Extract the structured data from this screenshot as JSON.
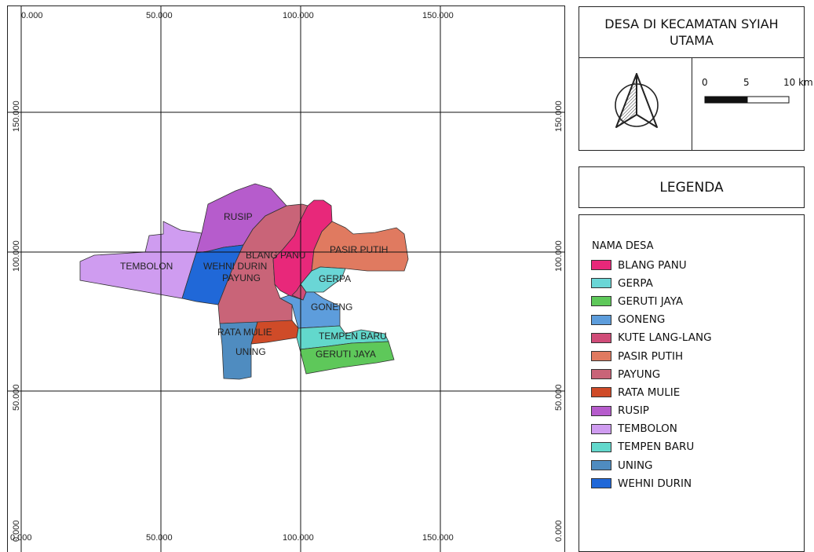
{
  "title": "DESA DI KECAMATAN SYIAH UTAMA",
  "legend": {
    "title": "LEGENDA",
    "heading": "NAMA DESA",
    "items": [
      {
        "label": "BLANG PANU",
        "color": "#e8287a"
      },
      {
        "label": "GERPA",
        "color": "#6ad6d6"
      },
      {
        "label": "GERUTI JAYA",
        "color": "#5ec85a"
      },
      {
        "label": "GONENG",
        "color": "#5d9ddc"
      },
      {
        "label": "KUTE LANG-LANG",
        "color": "#d04c78"
      },
      {
        "label": "PASIR PUTIH",
        "color": "#e07a60"
      },
      {
        "label": "PAYUNG",
        "color": "#c96478"
      },
      {
        "label": "RATA MULIE",
        "color": "#cf4b28"
      },
      {
        "label": "RUSIP",
        "color": "#b65ccc"
      },
      {
        "label": "TEMBOLON",
        "color": "#cf9cf0"
      },
      {
        "label": "TEMPEN BARU",
        "color": "#62d8cc"
      },
      {
        "label": "UNING",
        "color": "#4f8cc0"
      },
      {
        "label": "WEHNI DURIN",
        "color": "#2068d8"
      }
    ]
  },
  "scale_bar": {
    "labels": [
      "0",
      "5",
      "10 km"
    ]
  },
  "grid": {
    "top_labels": [
      "0.000",
      "50.000",
      "100.000",
      "150.000"
    ],
    "bottom_labels": [
      "0.000",
      "50.000",
      "100.000",
      "150.000"
    ],
    "left_labels": [
      "150.000",
      "100.000",
      "50.000",
      "0.000"
    ],
    "right_labels": [
      "150.000",
      "100.000",
      "50.000",
      "0.000"
    ]
  },
  "map_labels": {
    "rusip": "RUSIP",
    "tembolon": "TEMBOLON",
    "wehni_durin": "WEHNI DURIN",
    "blang_panu": "BLANG PANU",
    "pasir_putih": "PASIR PUTIH",
    "payung": "PAYUNG",
    "gerpa": "GERPA",
    "goneng": "GONENG",
    "rata_mulie": "RATA MULIE",
    "tempen_baru": "TEMPEN BARU",
    "uning": "UNING",
    "geruti_jaya": "GERUTI JAYA"
  }
}
